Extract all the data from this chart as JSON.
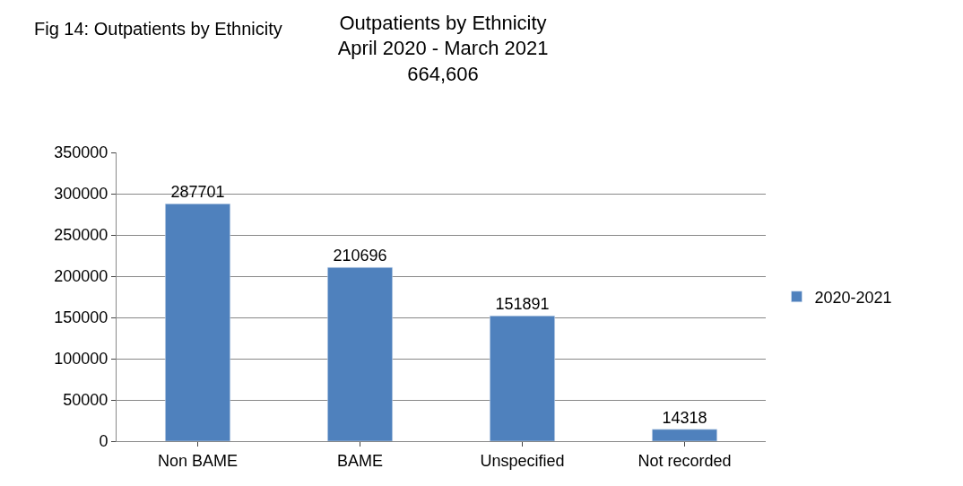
{
  "chart_data": {
    "type": "bar",
    "title": "Outpatients by Ethnicity\nApril 2020 - March 2021\n664,606",
    "annotations": [
      "Fig 14: Outpatients by Ethnicity"
    ],
    "categories": [
      "Non BAME",
      "BAME",
      "Unspecified",
      "Not recorded"
    ],
    "series": [
      {
        "name": "2020-2021",
        "color": "#4f81bd",
        "values": [
          287701,
          210696,
          151891,
          14318
        ]
      }
    ],
    "ylim": [
      0,
      350000
    ],
    "yticks": [
      0,
      50000,
      100000,
      150000,
      200000,
      250000,
      300000,
      350000
    ],
    "grid": "y",
    "legend": "right",
    "data_labels": true
  }
}
